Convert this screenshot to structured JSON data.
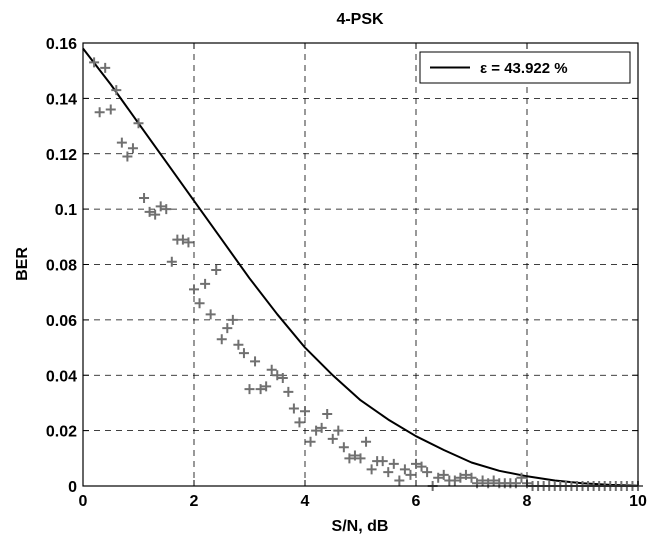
{
  "chart_data": {
    "type": "line",
    "title": "4-PSK",
    "xlabel": "S/N, dB",
    "ylabel": "BER",
    "xlim": [
      0,
      10
    ],
    "ylim": [
      0,
      0.16
    ],
    "xticks": [
      0,
      2,
      4,
      6,
      8,
      10
    ],
    "yticks": [
      0,
      0.02,
      0.04,
      0.06,
      0.08,
      0.1,
      0.12,
      0.14,
      0.16
    ],
    "xtick_labels": [
      "0",
      "2",
      "4",
      "6",
      "8",
      "10"
    ],
    "ytick_labels": [
      "0",
      "0.02",
      "0.04",
      "0.06",
      "0.08",
      "0.1",
      "0.12",
      "0.14",
      "0.16"
    ],
    "grid": true,
    "legend_position": "top-right",
    "series": [
      {
        "name": "ε = 43.922 %",
        "style": "line",
        "color": "#000000",
        "x": [
          0,
          0.5,
          1,
          1.5,
          2,
          2.5,
          3,
          3.5,
          4,
          4.5,
          5,
          5.5,
          6,
          6.5,
          7,
          7.5,
          8,
          8.5,
          9,
          9.5,
          10
        ],
        "y": [
          0.158,
          0.145,
          0.131,
          0.117,
          0.103,
          0.089,
          0.075,
          0.062,
          0.05,
          0.04,
          0.031,
          0.024,
          0.018,
          0.013,
          0.0085,
          0.0055,
          0.0035,
          0.002,
          0.001,
          0.0004,
          0.0001
        ]
      },
      {
        "style": "markers",
        "marker": "+",
        "color": "#707070",
        "x": [
          0.2,
          0.3,
          0.4,
          0.5,
          0.6,
          0.7,
          0.8,
          0.9,
          1.0,
          1.1,
          1.2,
          1.3,
          1.4,
          1.5,
          1.6,
          1.7,
          1.8,
          1.9,
          2.0,
          2.1,
          2.2,
          2.3,
          2.4,
          2.5,
          2.6,
          2.7,
          2.8,
          2.9,
          3.0,
          3.1,
          3.2,
          3.3,
          3.4,
          3.5,
          3.6,
          3.7,
          3.8,
          3.9,
          4.0,
          4.1,
          4.2,
          4.3,
          4.4,
          4.5,
          4.6,
          4.7,
          4.8,
          4.9,
          5.0,
          5.1,
          5.2,
          5.3,
          5.4,
          5.5,
          5.6,
          5.7,
          5.8,
          5.9,
          6.0,
          6.1,
          6.2,
          6.3,
          6.4,
          6.5,
          6.6,
          6.7,
          6.8,
          6.9,
          7.0,
          7.1,
          7.2,
          7.3,
          7.4,
          7.5,
          7.6,
          7.7,
          7.8,
          7.9,
          8.0,
          8.1,
          8.2,
          8.3,
          8.4,
          8.5,
          8.6,
          8.7,
          8.8,
          8.9,
          9.0,
          9.1,
          9.2,
          9.3,
          9.4,
          9.5,
          9.6,
          9.7,
          9.8,
          9.9,
          10.0
        ],
        "y": [
          0.153,
          0.135,
          0.151,
          0.136,
          0.143,
          0.124,
          0.119,
          0.122,
          0.131,
          0.104,
          0.099,
          0.098,
          0.101,
          0.1,
          0.081,
          0.089,
          0.089,
          0.088,
          0.071,
          0.066,
          0.073,
          0.062,
          0.078,
          0.053,
          0.057,
          0.06,
          0.051,
          0.048,
          0.035,
          0.045,
          0.035,
          0.036,
          0.042,
          0.04,
          0.039,
          0.034,
          0.028,
          0.023,
          0.027,
          0.016,
          0.02,
          0.021,
          0.026,
          0.017,
          0.02,
          0.014,
          0.01,
          0.011,
          0.01,
          0.016,
          0.006,
          0.009,
          0.009,
          0.005,
          0.008,
          0.002,
          0.006,
          0.004,
          0.008,
          0.007,
          0.005,
          0.0,
          0.003,
          0.004,
          0.002,
          0.002,
          0.003,
          0.004,
          0.003,
          0.001,
          0.002,
          0.001,
          0.002,
          0.001,
          0.001,
          0.001,
          0.001,
          0.003,
          0.001,
          0.0,
          0.0,
          0.0,
          0.0,
          0.0,
          0.0,
          0.0,
          0.0,
          0.0,
          0.0,
          0.0,
          0.0,
          0.0,
          0.0,
          0.0,
          0.0,
          0.0,
          0.0,
          0.0,
          0.0
        ]
      }
    ]
  }
}
